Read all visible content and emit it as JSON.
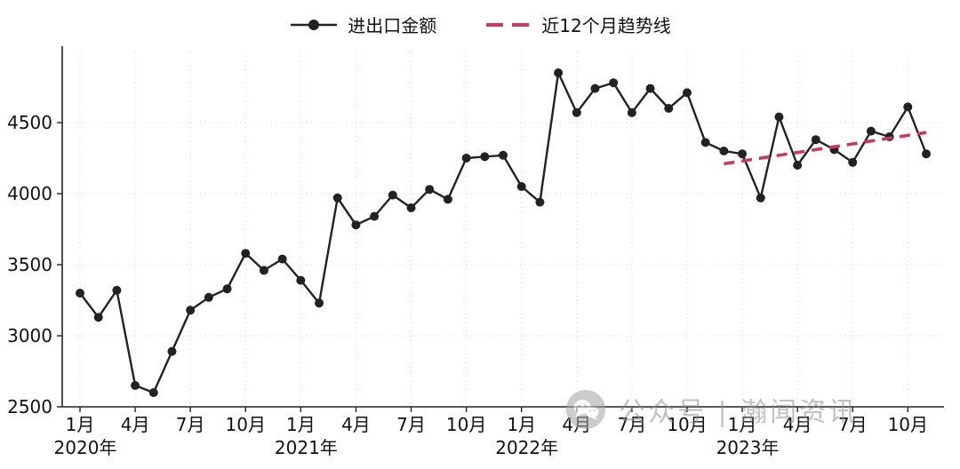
{
  "legend": {
    "series_label": "进出口金额",
    "trend_label": "近12个月趋势线"
  },
  "watermark": {
    "text": "公众号 | 瀚闻资讯"
  },
  "chart_data": {
    "type": "line",
    "title": "",
    "xlabel": "",
    "ylabel": "",
    "x_start": "2020年1月",
    "x_end": "2023年11月",
    "ylim": [
      2500,
      5000
    ],
    "yticks": [
      2500,
      3000,
      3500,
      4000,
      4500
    ],
    "x_tick_months": [
      "1月",
      "4月",
      "7月",
      "10月"
    ],
    "years": [
      "2020年",
      "2021年",
      "2022年",
      "2023年"
    ],
    "grid": "dotted",
    "legend_position": "top-center",
    "series": [
      {
        "name": "进出口金额",
        "color": "#222222",
        "marker": "circle",
        "values": [
          3300,
          3130,
          3320,
          2650,
          2600,
          2890,
          3180,
          3270,
          3330,
          3580,
          3460,
          3540,
          3390,
          3230,
          3970,
          3780,
          3840,
          3990,
          3900,
          4030,
          3960,
          4250,
          4260,
          4270,
          4050,
          3940,
          4850,
          4570,
          4740,
          4780,
          4570,
          4740,
          4600,
          4710,
          4360,
          4300,
          4280,
          3970,
          4540,
          4200,
          4380,
          4310,
          4220,
          4440,
          4400,
          4610,
          4280
        ]
      },
      {
        "name": "近12个月趋势线",
        "color": "#c73a5e",
        "style": "dashed",
        "trend": {
          "start_index": 35,
          "end_index": 46,
          "y_start": 4210,
          "y_end": 4430
        }
      }
    ]
  }
}
